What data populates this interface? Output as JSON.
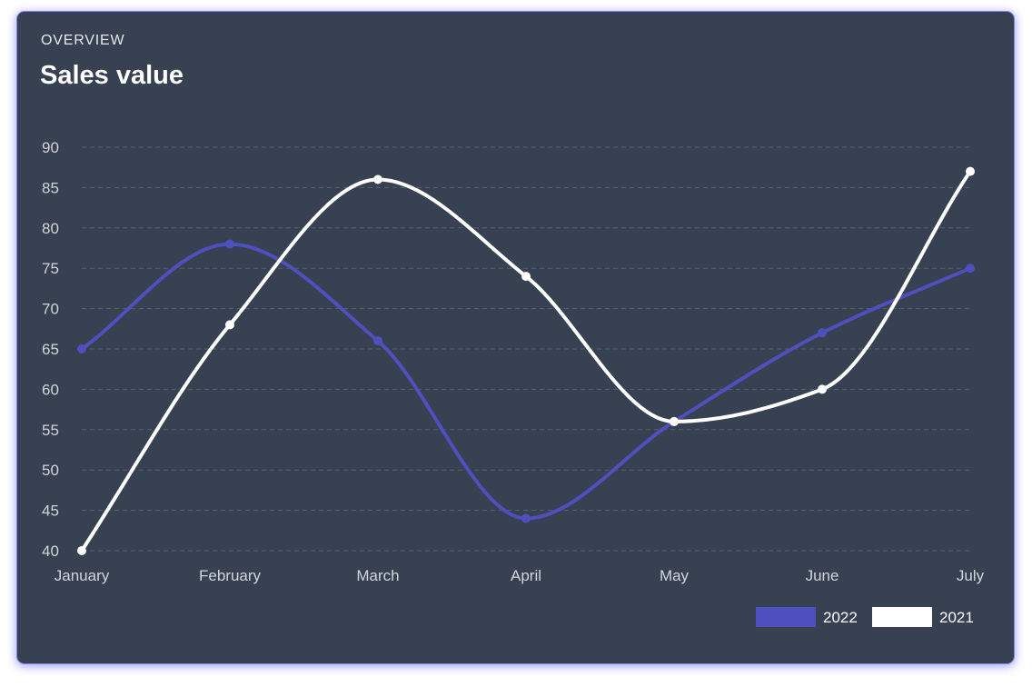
{
  "card": {
    "eyebrow": "OVERVIEW",
    "title": "Sales value"
  },
  "chart_data": {
    "type": "line",
    "categories": [
      "January",
      "February",
      "March",
      "April",
      "May",
      "June",
      "July"
    ],
    "y_ticks": [
      40,
      45,
      50,
      55,
      60,
      65,
      70,
      75,
      80,
      85,
      90
    ],
    "ylim": [
      40,
      90
    ],
    "grid": true,
    "legend_position": "bottom-right",
    "series": [
      {
        "name": "2022",
        "color": "#4f4fbd",
        "values": [
          65,
          78,
          66,
          44,
          56,
          67,
          75
        ]
      },
      {
        "name": "2021",
        "color": "#ffffff",
        "values": [
          40,
          68,
          86,
          74,
          56,
          60,
          87
        ]
      }
    ],
    "colors": {
      "background": "#374151",
      "grid": "#566173",
      "tick_text": "#d1d5db"
    }
  }
}
